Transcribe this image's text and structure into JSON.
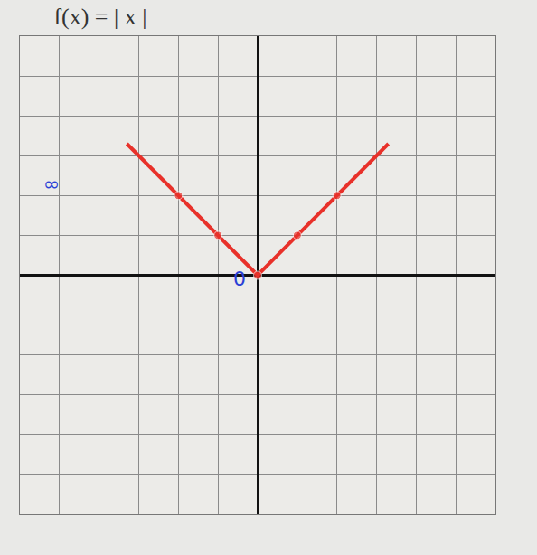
{
  "chart_data": {
    "type": "line",
    "title": "f(x) = | x |",
    "x": [
      -3.3,
      -2,
      -1,
      0,
      1,
      2,
      3.3
    ],
    "values": [
      3.3,
      2,
      1,
      0,
      1,
      2,
      3.3
    ],
    "color": "#e8312a",
    "marker": "circle",
    "xlim": [
      -6,
      6
    ],
    "ylim": [
      -6,
      6
    ],
    "xticks": [
      -6,
      -5,
      -4,
      -3,
      -2,
      -1,
      0,
      1,
      2,
      3,
      4,
      5,
      6
    ],
    "yticks": [
      -6,
      -5,
      -4,
      -3,
      -2,
      -1,
      0,
      1,
      2,
      3,
      4,
      5,
      6
    ],
    "grid": true,
    "tick_labels": false,
    "annotations": [
      {
        "text": "∞",
        "x": -5.2,
        "y": 2.3,
        "color": "#2a3fd6"
      },
      {
        "text": "0",
        "x": -0.45,
        "y": -0.1,
        "color": "#2a3fd6"
      }
    ]
  }
}
